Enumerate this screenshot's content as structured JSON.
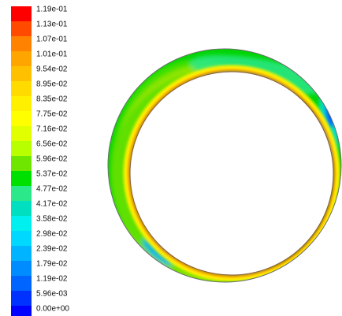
{
  "chart_data": {
    "type": "heatmap",
    "title": "",
    "colorbar": {
      "position": "left",
      "tick_labels": [
        "1.19e-01",
        "1.13e-01",
        "1.07e-01",
        "1.01e-01",
        "9.54e-02",
        "8.95e-02",
        "8.35e-02",
        "7.75e-02",
        "7.16e-02",
        "6.56e-02",
        "5.96e-02",
        "5.37e-02",
        "4.77e-02",
        "4.17e-02",
        "3.58e-02",
        "2.98e-02",
        "2.39e-02",
        "1.79e-02",
        "1.19e-02",
        "5.96e-03",
        "0.00e+00"
      ],
      "colors": [
        "#ff0000",
        "#ff4a00",
        "#ff8300",
        "#ffa500",
        "#ffc000",
        "#ffdb00",
        "#fff000",
        "#ffff00",
        "#e2ff00",
        "#b8ff00",
        "#6ee600",
        "#00e000",
        "#2be88a",
        "#00e0c0",
        "#00f0f0",
        "#00d8ff",
        "#00b4ff",
        "#008cff",
        "#0064ff",
        "#0032ff",
        "#0000ff"
      ],
      "range": [
        0.0,
        0.119
      ]
    },
    "field": {
      "shape": "annulus (eccentric inner circle)",
      "dominant_range": [
        0.0537,
        0.0596
      ],
      "min_regions": [
        "right side near narrow gap (~5.96e-03 to 1.79e-02)",
        "lower-left edge (~2.39e-02)"
      ],
      "max_regions": [
        "thin band along inner circle boundary (~1.19e-01)"
      ]
    }
  }
}
